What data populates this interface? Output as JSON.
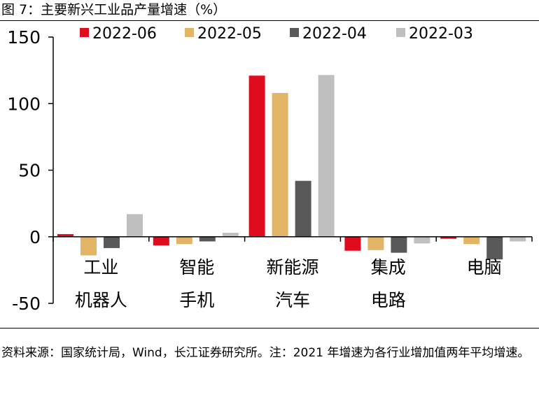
{
  "figure": {
    "title": "图 7：主要新兴工业品产量增速（%）",
    "source_note": "资料来源：国家统计局，Wind，长江证券研究所。注：2021 年增速为各行业增加值两年平均增速。"
  },
  "chart_data": {
    "type": "bar",
    "title": "",
    "xlabel": "",
    "ylabel": "",
    "ylim": [
      -50,
      150
    ],
    "yticks": [
      -50,
      0,
      50,
      100,
      150
    ],
    "categories": [
      [
        "工业",
        "机器人"
      ],
      [
        "智能",
        "手机"
      ],
      [
        "新能源",
        "汽车"
      ],
      [
        "集成",
        "电路"
      ],
      [
        "电脑"
      ]
    ],
    "series": [
      {
        "name": "2022-06",
        "color": "#E00B1C",
        "values": [
          2,
          -6.5,
          121,
          -10.5,
          -1.5
        ]
      },
      {
        "name": "2022-05",
        "color": "#E1B565",
        "values": [
          -14,
          -5.5,
          108,
          -10,
          -5.5
        ]
      },
      {
        "name": "2022-04",
        "color": "#595959",
        "values": [
          -8.5,
          -3.5,
          42,
          -12,
          -17
        ]
      },
      {
        "name": "2022-03",
        "color": "#BFBFBF",
        "values": [
          17,
          3,
          121.5,
          -5,
          -3.5
        ]
      }
    ],
    "legend": "top",
    "grid": false
  }
}
